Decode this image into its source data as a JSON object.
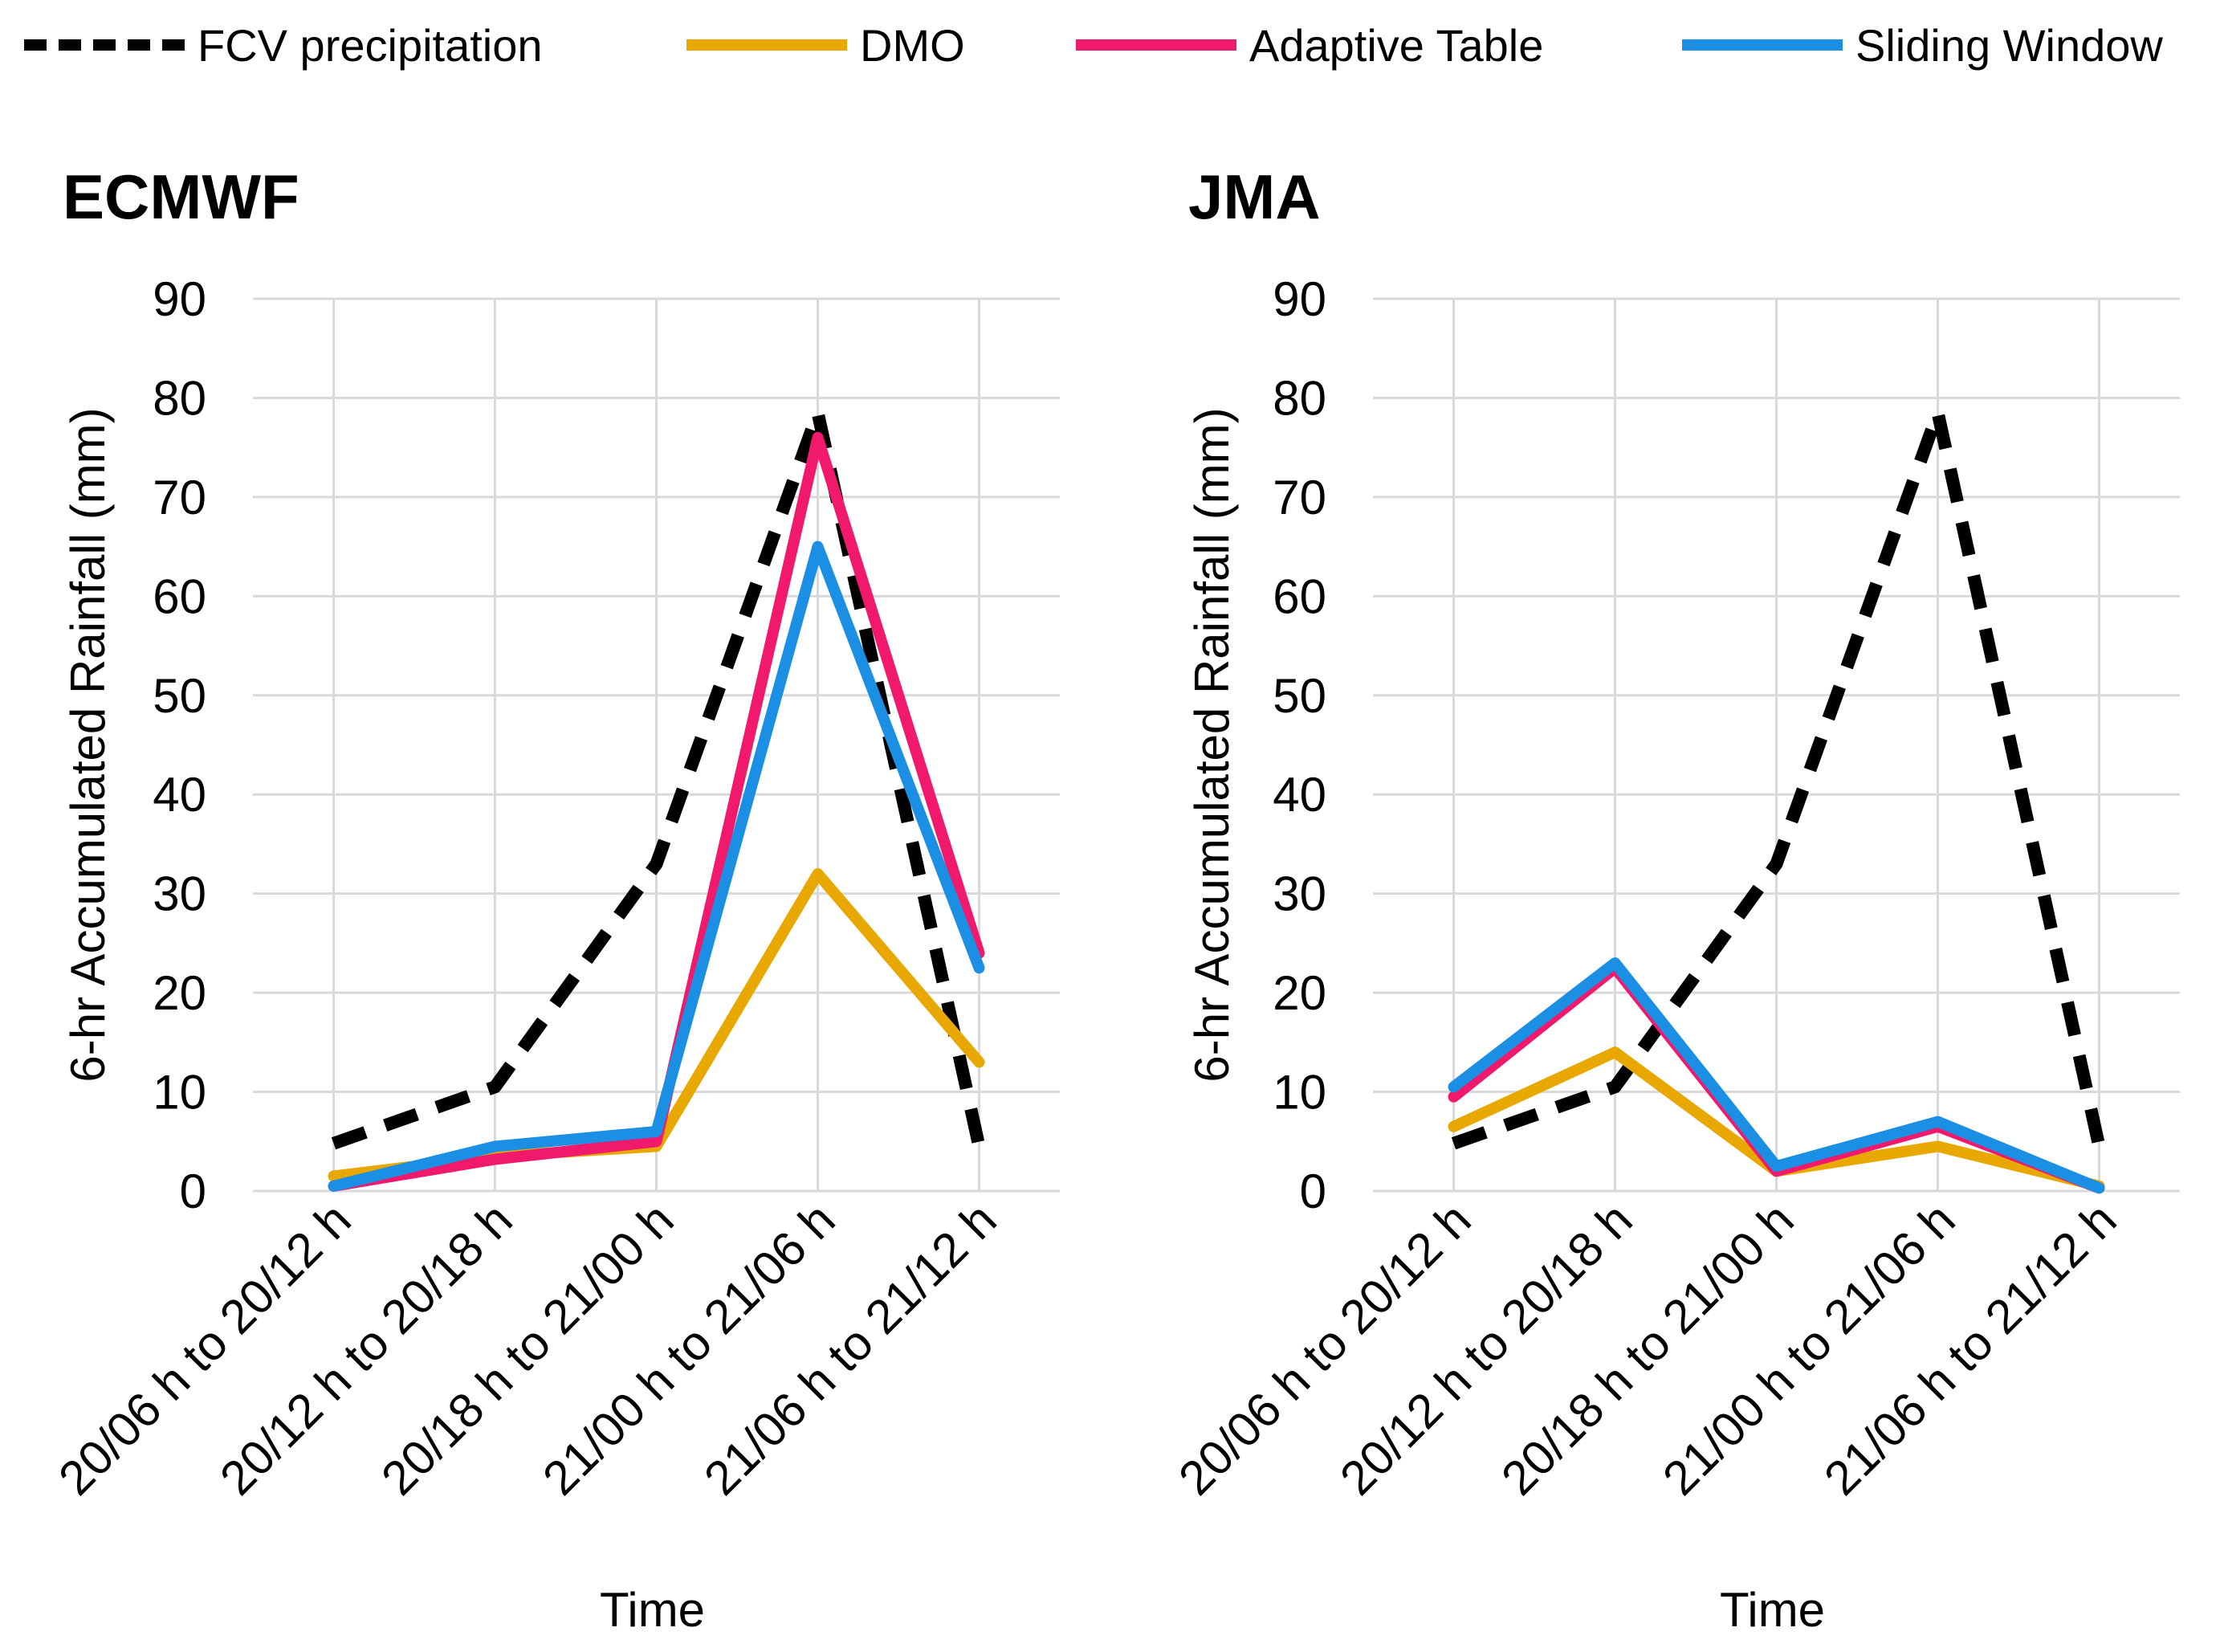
{
  "legend": {
    "items": [
      {
        "name": "FCV precipitation",
        "color": "#000000",
        "dashed": true
      },
      {
        "name": "DMO",
        "color": "#E8A800",
        "dashed": false
      },
      {
        "name": "Adaptive Table",
        "color": "#F0196C",
        "dashed": false
      },
      {
        "name": "Sliding Window",
        "color": "#1A8FE3",
        "dashed": false
      }
    ]
  },
  "chart_data": [
    {
      "type": "line",
      "title": "ECMWF",
      "xlabel": "Time",
      "ylabel": "6-hr Accumulated Rainfall (mm)",
      "ylim": [
        0,
        90
      ],
      "yticks": [
        "0",
        "10",
        "20",
        "30",
        "40",
        "50",
        "60",
        "70",
        "80",
        "90"
      ],
      "grid": true,
      "categories": [
        "20/06 h to 20/12 h",
        "20/12 h to 20/18 h",
        "20/18 h to 21/00 h",
        "21/00 h to 21/06 h",
        "21/06 h to 21/12 h"
      ],
      "series": [
        {
          "name": "FCV precipitation",
          "values": [
            4.8,
            10.5,
            33.0,
            78.5,
            4.5
          ]
        },
        {
          "name": "DMO",
          "values": [
            1.5,
            3.5,
            4.5,
            32.0,
            13.0
          ]
        },
        {
          "name": "Adaptive Table",
          "values": [
            0.5,
            3.2,
            5.0,
            76.0,
            24.0
          ]
        },
        {
          "name": "Sliding Window",
          "values": [
            0.5,
            4.5,
            6.0,
            65.0,
            22.5
          ]
        }
      ]
    },
    {
      "type": "line",
      "title": "JMA",
      "xlabel": "Time",
      "ylabel": "6-hr Accumulated Rainfall (mm)",
      "ylim": [
        0,
        90
      ],
      "yticks": [
        "0",
        "10",
        "20",
        "30",
        "40",
        "50",
        "60",
        "70",
        "80",
        "90"
      ],
      "grid": true,
      "categories": [
        "20/06 h to 20/12 h",
        "20/12 h to 20/18 h",
        "20/18 h to 21/00 h",
        "21/00 h to 21/06 h",
        "21/06 h to 21/12 h"
      ],
      "series": [
        {
          "name": "FCV precipitation",
          "values": [
            4.8,
            10.5,
            33.0,
            78.5,
            4.5
          ]
        },
        {
          "name": "DMO",
          "values": [
            6.5,
            14.0,
            2.0,
            4.5,
            0.5
          ]
        },
        {
          "name": "Adaptive Table",
          "values": [
            9.5,
            22.5,
            2.0,
            6.5,
            0.3
          ]
        },
        {
          "name": "Sliding Window",
          "values": [
            10.5,
            23.0,
            2.5,
            7.0,
            0.3
          ]
        }
      ]
    }
  ]
}
